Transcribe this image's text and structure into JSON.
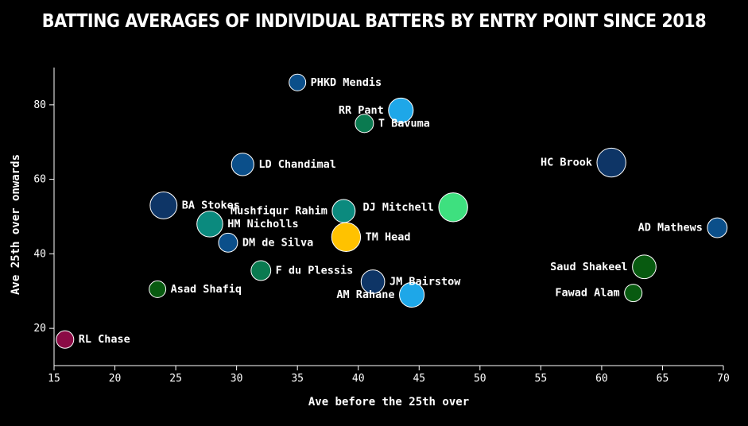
{
  "chart_data": {
    "type": "scatter",
    "title": "BATTING AVERAGES OF INDIVIDUAL BATTERS BY ENTRY POINT SINCE 2018",
    "xlabel": "Ave before the 25th over",
    "ylabel": "Ave 25th over onwards",
    "xlim": [
      15,
      70
    ],
    "ylim": [
      10,
      90
    ],
    "xticks": [
      15,
      20,
      25,
      30,
      35,
      40,
      45,
      50,
      55,
      60,
      65,
      70
    ],
    "yticks": [
      20,
      40,
      60,
      80
    ],
    "points": [
      {
        "name": "PHKD Mendis",
        "x": 35.0,
        "y": 86.0,
        "size": 1.0,
        "color": "#0b4f8a",
        "label_side": "right"
      },
      {
        "name": "RR Pant",
        "x": 43.5,
        "y": 78.5,
        "size": 2.2,
        "color": "#1ea7e8",
        "label_side": "left"
      },
      {
        "name": "T Bavuma",
        "x": 40.5,
        "y": 75.0,
        "size": 1.2,
        "color": "#0a7a50",
        "label_side": "right"
      },
      {
        "name": "LD Chandimal",
        "x": 30.5,
        "y": 64.0,
        "size": 1.8,
        "color": "#0b4f8a",
        "label_side": "right"
      },
      {
        "name": "HC Brook",
        "x": 60.8,
        "y": 64.5,
        "size": 3.0,
        "color": "#0e3566",
        "label_side": "left"
      },
      {
        "name": "BA Stokes",
        "x": 24.0,
        "y": 53.0,
        "size": 2.6,
        "color": "#0e3566",
        "label_side": "right"
      },
      {
        "name": "Mushfiqur Rahim",
        "x": 38.8,
        "y": 51.5,
        "size": 1.9,
        "color": "#0b8a7e",
        "label_side": "left"
      },
      {
        "name": "DJ Mitchell",
        "x": 47.8,
        "y": 52.5,
        "size": 3.0,
        "color": "#3ee07f",
        "label_side": "left"
      },
      {
        "name": "HM Nicholls",
        "x": 27.8,
        "y": 48.0,
        "size": 2.4,
        "color": "#0b8a7e",
        "label_side": "right"
      },
      {
        "name": "AD Mathews",
        "x": 69.5,
        "y": 47.0,
        "size": 1.4,
        "color": "#0b4f8a",
        "label_side": "left"
      },
      {
        "name": "TM Head",
        "x": 39.0,
        "y": 44.5,
        "size": 3.0,
        "color": "#ffc200",
        "label_side": "right"
      },
      {
        "name": "DM de Silva",
        "x": 29.3,
        "y": 43.0,
        "size": 1.3,
        "color": "#0b4f8a",
        "label_side": "right"
      },
      {
        "name": "Saud Shakeel",
        "x": 63.5,
        "y": 36.5,
        "size": 2.0,
        "color": "#085a10",
        "label_side": "left"
      },
      {
        "name": "F du Plessis",
        "x": 32.0,
        "y": 35.5,
        "size": 1.4,
        "color": "#0a7a50",
        "label_side": "right"
      },
      {
        "name": "JM Bairstow",
        "x": 41.2,
        "y": 32.5,
        "size": 2.0,
        "color": "#0e3566",
        "label_side": "right"
      },
      {
        "name": "Asad Shafiq",
        "x": 23.5,
        "y": 30.5,
        "size": 1.0,
        "color": "#085a10",
        "label_side": "right"
      },
      {
        "name": "Fawad Alam",
        "x": 62.6,
        "y": 29.5,
        "size": 1.1,
        "color": "#085a10",
        "label_side": "left"
      },
      {
        "name": "AM Rahane",
        "x": 44.4,
        "y": 29.0,
        "size": 2.2,
        "color": "#1ea7e8",
        "label_side": "left"
      },
      {
        "name": "RL Chase",
        "x": 15.9,
        "y": 17.0,
        "size": 1.1,
        "color": "#8a0b45",
        "label_side": "right"
      }
    ]
  }
}
